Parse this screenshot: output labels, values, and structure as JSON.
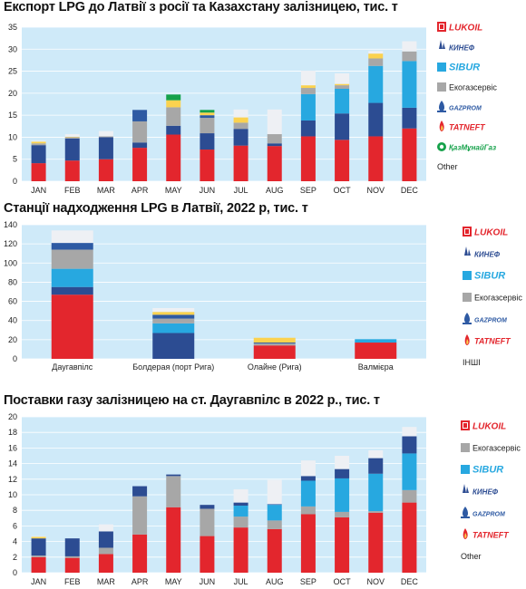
{
  "colors": {
    "LUKOIL": "#e3262d",
    "KINEF": "#2c4c92",
    "SIBUR": "#27a8e0",
    "Ekogazservis": "#a7a7a7",
    "GAZPROM": "#2e5aa3",
    "TATNEFT": "#fbd24f",
    "KazMunayGaz": "#15a14a",
    "Other": "#eef0f4",
    "plot_bg": "#cfeaf9"
  },
  "charts": [
    {
      "title": "Експорт LPG до Латвії з росії та Казахстану залізницею, тис. т",
      "legend": [
        {
          "key": "LUKOIL",
          "label": "LUKOIL",
          "icon": "lukoil-logo-icon"
        },
        {
          "key": "KINEF",
          "label": "КИНЕФ",
          "icon": "kinef-logo-icon"
        },
        {
          "key": "SIBUR",
          "label": "SIBUR",
          "icon": "sibur-logo-icon"
        },
        {
          "key": "Ekogazservis",
          "label": "Екогазсервіс",
          "icon": "ekogazservis-icon"
        },
        {
          "key": "GAZPROM",
          "label": "GAZPROM",
          "icon": "gazprom-logo-icon"
        },
        {
          "key": "TATNEFT",
          "label": "TATNEFT",
          "icon": "tatneft-logo-icon"
        },
        {
          "key": "KazMunayGaz",
          "label": "ҚазМұнайГаз",
          "icon": "kazmunaygaz-logo-icon"
        },
        {
          "key": "Other",
          "label": "Other",
          "icon": ""
        }
      ]
    },
    {
      "title": "Станції надходження LPG в Латвії, 2022 р, тис. т",
      "legend": [
        {
          "key": "LUKOIL",
          "label": "LUKOIL",
          "icon": "lukoil-logo-icon"
        },
        {
          "key": "KINEF",
          "label": "КИНЕФ",
          "icon": "kinef-logo-icon"
        },
        {
          "key": "SIBUR",
          "label": "SIBUR",
          "icon": "sibur-logo-icon"
        },
        {
          "key": "Ekogazservis",
          "label": "Екогазсервіс",
          "icon": "ekogazservis-icon"
        },
        {
          "key": "GAZPROM",
          "label": "GAZPROM",
          "icon": "gazprom-logo-icon"
        },
        {
          "key": "TATNEFT",
          "label": "TATNEFT",
          "icon": "tatneft-logo-icon"
        },
        {
          "key": "Other",
          "label": "ІНШІ",
          "icon": ""
        }
      ]
    },
    {
      "title": "Поставки газу залізницею на ст. Даугавпілс в 2022 р., тис. т",
      "legend": [
        {
          "key": "LUKOIL",
          "label": "LUKOIL",
          "icon": "lukoil-logo-icon"
        },
        {
          "key": "Ekogazservis",
          "label": "Екогазсервіс",
          "icon": "ekogazservis-icon"
        },
        {
          "key": "SIBUR",
          "label": "SIBUR",
          "icon": "sibur-logo-icon"
        },
        {
          "key": "KINEF",
          "label": "КИНЕФ",
          "icon": "kinef-logo-icon"
        },
        {
          "key": "GAZPROM",
          "label": "GAZPROM",
          "icon": "gazprom-logo-icon"
        },
        {
          "key": "TATNEFT",
          "label": "TATNEFT",
          "icon": "tatneft-logo-icon"
        },
        {
          "key": "Other",
          "label": "Other",
          "icon": ""
        }
      ]
    }
  ],
  "chart_data": [
    {
      "type": "bar",
      "stacked": true,
      "title": "Експорт LPG до Латвії з росії та Казахстану залізницею, тис. т",
      "categories": [
        "JAN",
        "FEB",
        "MAR",
        "APR",
        "MAY",
        "JUN",
        "JUL",
        "AUG",
        "SEP",
        "OCT",
        "NOV",
        "DEC"
      ],
      "ylim": [
        0,
        35
      ],
      "yticks": [
        0,
        5,
        10,
        15,
        20,
        25,
        30,
        35
      ],
      "grid": true,
      "legend_position": "right",
      "series": [
        {
          "key": "LUKOIL",
          "name": "LUKOIL",
          "values": [
            4.1,
            4.7,
            5.0,
            7.6,
            10.6,
            7.2,
            8.1,
            8.0,
            10.2,
            9.4,
            10.2,
            12.0
          ]
        },
        {
          "key": "KINEF",
          "name": "КИНЕФ",
          "values": [
            4.1,
            5.0,
            5.0,
            1.2,
            2.0,
            3.7,
            3.8,
            0.6,
            3.6,
            6.0,
            7.6,
            4.7
          ]
        },
        {
          "key": "SIBUR",
          "name": "SIBUR",
          "values": [
            0,
            0,
            0,
            0,
            0,
            0,
            0,
            0,
            6.0,
            5.6,
            8.4,
            10.6
          ]
        },
        {
          "key": "Ekogazservis",
          "name": "Екогазсервіс",
          "values": [
            0.4,
            0.3,
            0.2,
            4.8,
            4.2,
            3.5,
            1.4,
            2.1,
            1.4,
            0.8,
            1.7,
            2.2
          ]
        },
        {
          "key": "GAZPROM",
          "name": "GAZPROM",
          "values": [
            0,
            0,
            0,
            2.6,
            0,
            0.6,
            0,
            0,
            0,
            0,
            0,
            0
          ]
        },
        {
          "key": "TATNEFT",
          "name": "TATNEFT",
          "values": [
            0.4,
            0.1,
            0,
            0,
            1.6,
            0.6,
            1.2,
            0,
            0.6,
            0.3,
            1.1,
            0
          ]
        },
        {
          "key": "KazMunayGaz",
          "name": "ҚазМұнайГаз",
          "values": [
            0,
            0,
            0,
            0,
            1.3,
            0.6,
            0,
            0,
            0,
            0,
            0,
            0
          ]
        },
        {
          "key": "Other",
          "name": "Other",
          "values": [
            0.2,
            0.6,
            1.2,
            0,
            0,
            0,
            1.8,
            5.6,
            3.3,
            2.4,
            0.6,
            2.3
          ]
        }
      ]
    },
    {
      "type": "bar",
      "stacked": true,
      "title": "Станції надходження LPG в Латвії, 2022 р, тис. т",
      "categories": [
        "Даугавпілс",
        "Болдерая (порт Рига)",
        "Олайне (Рига)",
        "Валмієра"
      ],
      "ylim": [
        0,
        140
      ],
      "yticks": [
        0,
        20,
        40,
        60,
        80,
        100,
        120,
        140
      ],
      "grid": true,
      "legend_position": "right",
      "series": [
        {
          "key": "LUKOIL",
          "name": "LUKOIL",
          "values": [
            67,
            0,
            14,
            17
          ]
        },
        {
          "key": "KINEF",
          "name": "КИНЕФ",
          "values": [
            8,
            27,
            0,
            0
          ]
        },
        {
          "key": "SIBUR",
          "name": "SIBUR",
          "values": [
            19,
            10,
            0,
            3.5
          ]
        },
        {
          "key": "Ekogazservis",
          "name": "Екогазсервіс",
          "values": [
            20,
            5,
            2,
            0
          ]
        },
        {
          "key": "GAZPROM",
          "name": "GAZPROM",
          "values": [
            7,
            4,
            1,
            0
          ]
        },
        {
          "key": "TATNEFT",
          "name": "TATNEFT",
          "values": [
            0,
            3,
            5,
            0
          ]
        },
        {
          "key": "Other",
          "name": "ІНШІ",
          "values": [
            13,
            4,
            0,
            0
          ]
        }
      ]
    },
    {
      "type": "bar",
      "stacked": true,
      "title": "Поставки газу залізницею на ст. Даугавпілс в 2022 р., тис. т",
      "categories": [
        "JAN",
        "FEB",
        "MAR",
        "APR",
        "MAY",
        "JUN",
        "JUL",
        "AUG",
        "SEP",
        "OCT",
        "NOV",
        "DEC"
      ],
      "ylim": [
        0,
        20
      ],
      "yticks": [
        0,
        2,
        4,
        6,
        8,
        10,
        12,
        14,
        16,
        18,
        20
      ],
      "grid": true,
      "legend_position": "right",
      "series": [
        {
          "key": "LUKOIL",
          "name": "LUKOIL",
          "values": [
            2.0,
            1.9,
            2.4,
            4.9,
            8.4,
            4.7,
            5.8,
            5.6,
            7.5,
            7.1,
            7.7,
            9.0
          ]
        },
        {
          "key": "Ekogazservis",
          "name": "Екогазсервіс",
          "values": [
            0.2,
            0.2,
            0.8,
            4.9,
            4.0,
            3.5,
            1.4,
            1.1,
            1.0,
            0.7,
            0.2,
            1.6
          ]
        },
        {
          "key": "SIBUR",
          "name": "SIBUR",
          "values": [
            0,
            0,
            0,
            0,
            0,
            0,
            1.4,
            2.0,
            3.3,
            4.3,
            4.8,
            4.7
          ]
        },
        {
          "key": "KINEF",
          "name": "КИНЕФ",
          "values": [
            2.2,
            2.3,
            2.1,
            1.3,
            0.2,
            0.5,
            0.4,
            0,
            0.6,
            1.2,
            2.0,
            2.2
          ]
        },
        {
          "key": "GAZPROM",
          "name": "GAZPROM",
          "values": [
            0,
            0,
            0,
            0,
            0,
            0,
            0,
            0.1,
            0,
            0,
            0,
            0
          ]
        },
        {
          "key": "TATNEFT",
          "name": "TATNEFT",
          "values": [
            0.2,
            0,
            0,
            0,
            0,
            0,
            0,
            0,
            0,
            0,
            0,
            0
          ]
        },
        {
          "key": "Other",
          "name": "Other",
          "values": [
            0.1,
            0,
            0.9,
            0,
            0,
            0,
            1.7,
            3.1,
            2.0,
            1.7,
            1.0,
            1.2
          ]
        }
      ]
    }
  ]
}
